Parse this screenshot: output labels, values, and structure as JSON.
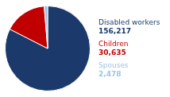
{
  "chart_data": {
    "type": "pie",
    "categories": [
      "Disabled workers",
      "Children",
      "Spouses"
    ],
    "values": [
      156217,
      30635,
      2478
    ],
    "value_labels": [
      "156,217",
      "30,635",
      "2,478"
    ],
    "data_labels": true,
    "colors": [
      "#1b3a6b",
      "#c00000",
      "#9dc3e6"
    ]
  }
}
